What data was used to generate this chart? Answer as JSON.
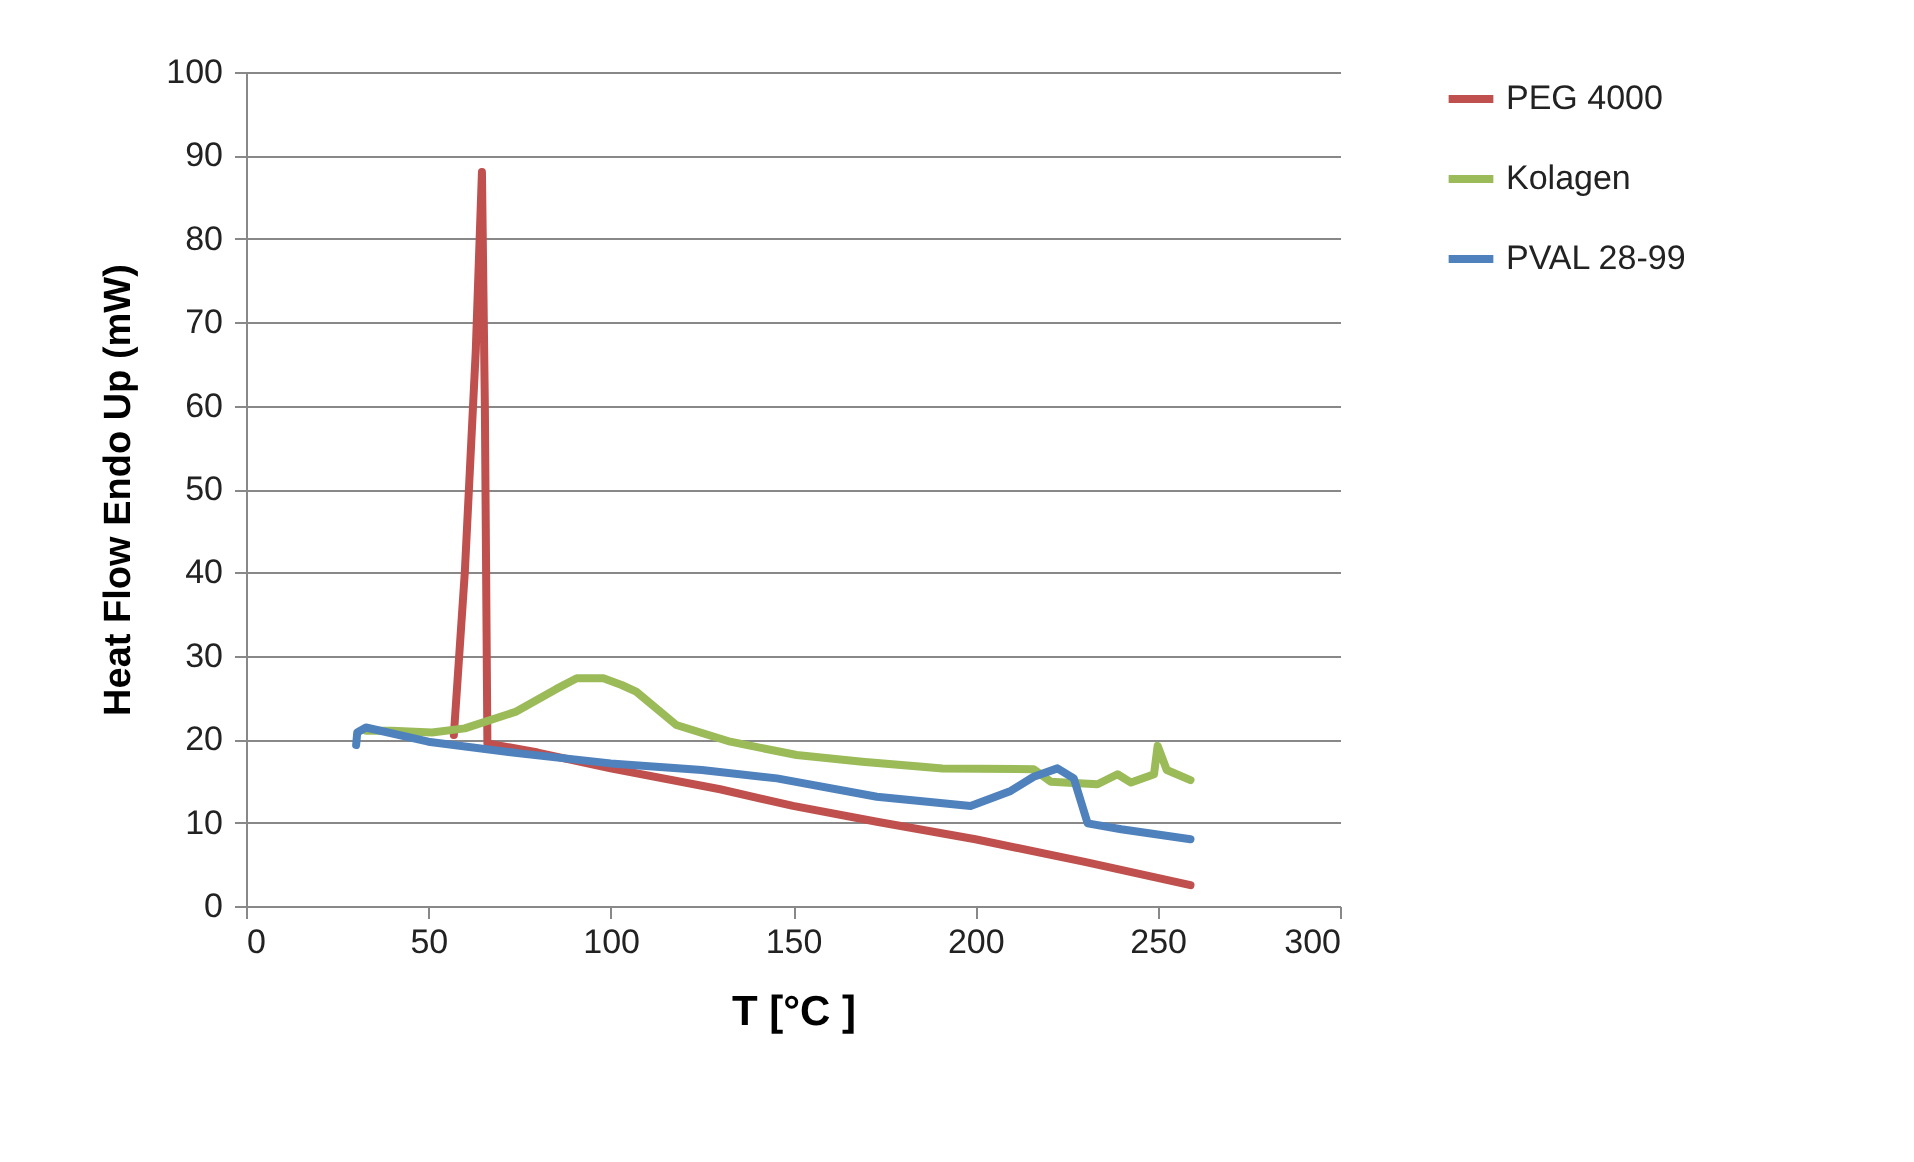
{
  "chart_data": {
    "type": "line",
    "xlabel": "T [°C ]",
    "ylabel": "Heat Flow Endo Up (mW)",
    "xlim": [
      0,
      300
    ],
    "xticks": [
      0,
      50,
      100,
      150,
      200,
      250,
      300
    ],
    "ylim": [
      0,
      100
    ],
    "yticks": [
      0,
      10,
      20,
      30,
      40,
      50,
      60,
      70,
      80,
      90,
      100
    ],
    "grid": "y",
    "legend": "right",
    "series": [
      {
        "name": "PEG 4000",
        "color": "#c0504d",
        "x": [
          57,
          60,
          63,
          64.7,
          65.5,
          66.2,
          80,
          100,
          130,
          150,
          173,
          200,
          230,
          259
        ],
        "values": [
          20.5,
          40,
          66.5,
          88,
          60,
          19.5,
          18.4,
          16.5,
          14,
          12,
          10.1,
          8,
          5.3,
          2.5
        ]
      },
      {
        "name": "Kolagen",
        "color": "#9bbb59",
        "x": [
          33,
          40,
          51,
          60,
          74,
          85,
          90.7,
          98,
          103,
          107,
          118,
          132.8,
          151,
          169,
          191,
          216,
          220.7,
          233.5,
          239,
          242.7,
          249,
          250,
          252.5,
          259
        ],
        "values": [
          21,
          21,
          20.8,
          21.3,
          23.3,
          26,
          27.3,
          27.3,
          26.5,
          25.7,
          21.7,
          19.7,
          18.1,
          17.3,
          16.5,
          16.4,
          14.9,
          14.6,
          15.8,
          14.8,
          15.8,
          19.2,
          16.3,
          15.1
        ]
      },
      {
        "name": "PVAL 28-99",
        "color": "#4f81bd",
        "x": [
          30.2,
          30.5,
          32.9,
          50,
          75,
          100,
          125,
          145.6,
          173,
          198.7,
          209.7,
          216,
          222.5,
          227,
          230.8,
          240,
          259
        ],
        "values": [
          19.3,
          20.8,
          21.4,
          19.7,
          18.3,
          17.1,
          16.3,
          15.3,
          13.1,
          12,
          13.8,
          15.5,
          16.5,
          15.3,
          9.9,
          9.2,
          8
        ]
      }
    ]
  }
}
